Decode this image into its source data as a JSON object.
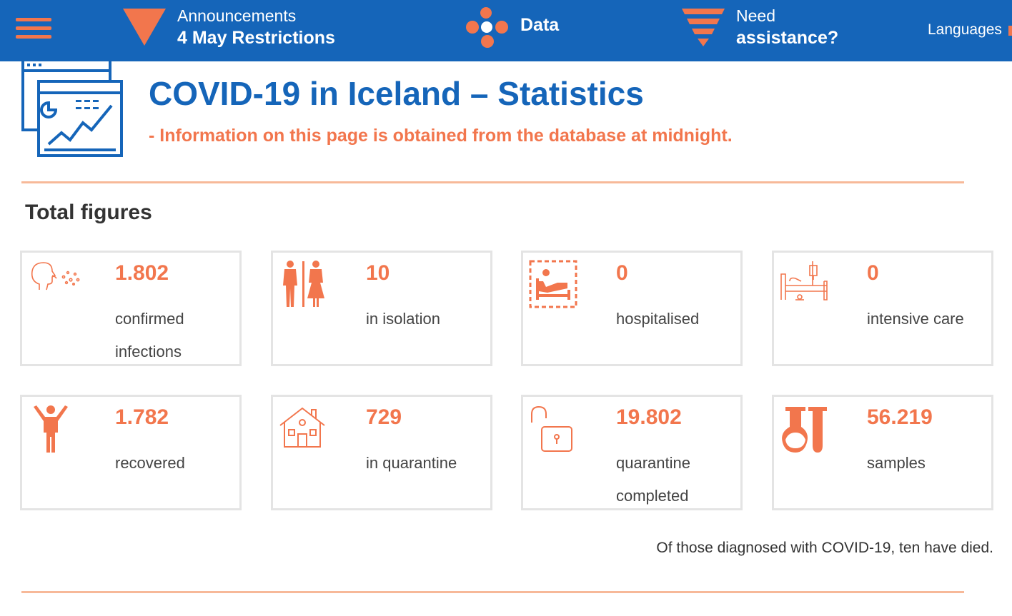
{
  "nav": {
    "menu_label": "",
    "announcements": {
      "label": "Announcements",
      "title": "4 May Restrictions"
    },
    "data_label": "Data",
    "assistance": {
      "label": "Need",
      "title": "assistance?"
    },
    "languages": "Languages"
  },
  "header": {
    "title": "COVID-19 in Iceland – Statistics",
    "subtitle": "- Information on this page is obtained from the database at midnight."
  },
  "section": {
    "title": "Total figures"
  },
  "cards": [
    {
      "value": "1.802",
      "label": "confirmed infections",
      "icon": "cough-icon"
    },
    {
      "value": "10",
      "label": "in isolation",
      "icon": "people-icon"
    },
    {
      "value": "0",
      "label": "hospitalised",
      "icon": "hospital-bed-icon"
    },
    {
      "value": "0",
      "label": "intensive care",
      "icon": "icu-bed-icon"
    },
    {
      "value": "1.782",
      "label": "recovered",
      "icon": "person-arms-up-icon"
    },
    {
      "value": "729",
      "label": "in quarantine",
      "icon": "house-icon"
    },
    {
      "value": "19.802",
      "label": "quarantine completed",
      "icon": "unlocked-padlock-icon"
    },
    {
      "value": "56.219",
      "label": "samples",
      "icon": "test-tubes-icon"
    }
  ],
  "footer_note": "Of those diagnosed with COVID-19, ten have died.",
  "colors": {
    "nav_bg": "#1565b9",
    "accent": "#f2764d",
    "divider": "#f7b999",
    "title": "#1565b9"
  }
}
